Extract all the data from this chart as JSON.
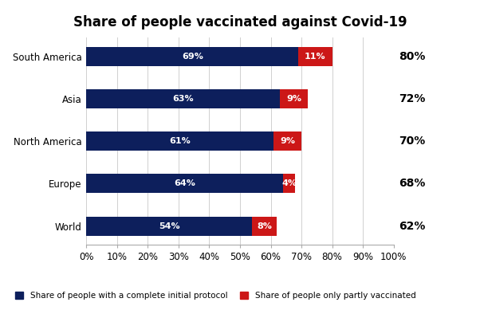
{
  "title": "Share of people vaccinated against Covid-19",
  "categories": [
    "South America",
    "Asia",
    "North America",
    "Europe",
    "World"
  ],
  "complete_values": [
    69,
    63,
    61,
    64,
    54
  ],
  "partial_values": [
    11,
    9,
    9,
    4,
    8
  ],
  "total_labels": [
    "80%",
    "72%",
    "70%",
    "68%",
    "62%"
  ],
  "complete_color": "#0d1f5c",
  "partial_color": "#cc1717",
  "background_color": "#ffffff",
  "legend_complete": "Share of people with a complete initial protocol",
  "legend_partial": "Share of people only partly vaccinated",
  "xlim": [
    0,
    100
  ],
  "xtick_values": [
    0,
    10,
    20,
    30,
    40,
    50,
    60,
    70,
    80,
    90,
    100
  ],
  "title_fontsize": 12,
  "label_fontsize": 8.5,
  "bar_label_fontsize": 8,
  "total_label_fontsize": 10
}
